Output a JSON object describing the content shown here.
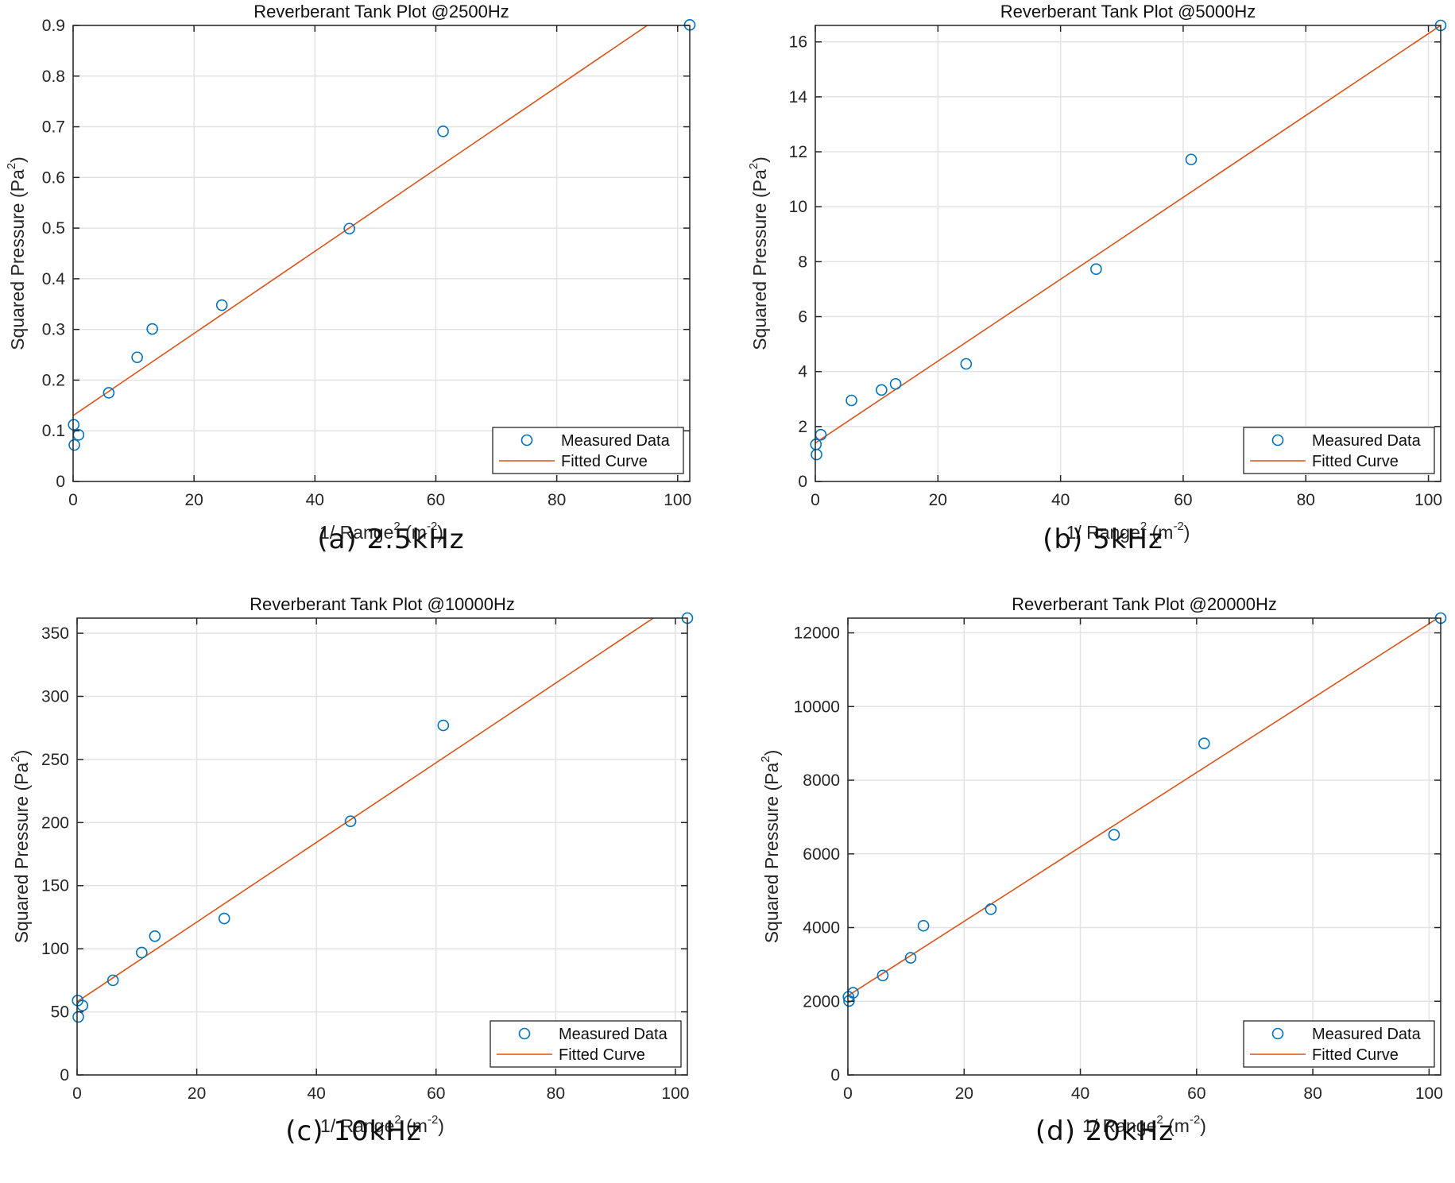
{
  "chart_data": [
    {
      "type": "scatter",
      "title": "Reverberant Tank Plot @2500Hz",
      "caption": "(a)  2.5kHz",
      "xlabel": "1/ Range",
      "xlabel_sup": "2",
      "xlabel_unit": " (m",
      "xlabel_unit_sup": "-2",
      "xlabel_end": ")",
      "ylabel": "Squared Pressure (Pa",
      "ylabel_sup": "2",
      "ylabel_end": ")",
      "xlim": [
        0,
        102
      ],
      "ylim": [
        0,
        0.9
      ],
      "xticks": [
        0,
        20,
        40,
        60,
        80,
        100
      ],
      "xtick_labels": [
        "0",
        "20",
        "40",
        "60",
        "80",
        "100"
      ],
      "yticks": [
        0,
        0.1,
        0.2,
        0.3,
        0.4,
        0.5,
        0.6,
        0.7,
        0.8,
        0.9
      ],
      "ytick_labels": [
        "0",
        "0.1",
        "0.2",
        "0.3",
        "0.4",
        "0.5",
        "0.6",
        "0.7",
        "0.8",
        "0.9"
      ],
      "grid": true,
      "legend_position": "bottom-right",
      "series": [
        {
          "name": "Measured Data",
          "kind": "markers",
          "color": "#0072BD",
          "x": [
            0.1,
            0.2,
            0.9,
            5.9,
            10.6,
            13.1,
            24.6,
            45.7,
            61.2,
            102
          ],
          "y": [
            0.112,
            0.072,
            0.092,
            0.175,
            0.245,
            0.301,
            0.348,
            0.499,
            0.691,
            0.901
          ]
        },
        {
          "name": "Fitted Curve",
          "kind": "line",
          "color": "#D95319",
          "x": [
            0,
            102
          ],
          "y": [
            0.13,
            0.957
          ]
        }
      ]
    },
    {
      "type": "scatter",
      "title": "Reverberant Tank Plot @5000Hz",
      "caption": "(b)  5kHz",
      "xlabel": "1/ Range",
      "xlabel_sup": "2",
      "xlabel_unit": " (m",
      "xlabel_unit_sup": "-2",
      "xlabel_end": ")",
      "ylabel": "Squared Pressure (Pa",
      "ylabel_sup": "2",
      "ylabel_end": ")",
      "xlim": [
        0,
        102
      ],
      "ylim": [
        0,
        16.6
      ],
      "xticks": [
        0,
        20,
        40,
        60,
        80,
        100
      ],
      "xtick_labels": [
        "0",
        "20",
        "40",
        "60",
        "80",
        "100"
      ],
      "yticks": [
        0,
        2,
        4,
        6,
        8,
        10,
        12,
        14,
        16
      ],
      "ytick_labels": [
        "0",
        "2",
        "4",
        "6",
        "8",
        "10",
        "12",
        "14",
        "16"
      ],
      "grid": true,
      "legend_position": "bottom-right",
      "series": [
        {
          "name": "Measured Data",
          "kind": "markers",
          "color": "#0072BD",
          "x": [
            0.1,
            0.2,
            0.9,
            5.9,
            10.8,
            13.1,
            24.6,
            45.8,
            61.3,
            102
          ],
          "y": [
            1.35,
            0.98,
            1.7,
            2.95,
            3.33,
            3.55,
            4.28,
            7.73,
            11.72,
            16.6
          ]
        },
        {
          "name": "Fitted Curve",
          "kind": "line",
          "color": "#D95319",
          "x": [
            0,
            102
          ],
          "y": [
            1.4,
            16.6
          ]
        }
      ]
    },
    {
      "type": "scatter",
      "title": "Reverberant Tank Plot @10000Hz",
      "caption": "(c)  10kHz",
      "xlabel": "1/ Range",
      "xlabel_sup": "2",
      "xlabel_unit": " (m",
      "xlabel_unit_sup": "-2",
      "xlabel_end": ")",
      "ylabel": "Squared Pressure (Pa",
      "ylabel_sup": "2",
      "ylabel_end": ")",
      "xlim": [
        0,
        102
      ],
      "ylim": [
        0,
        362
      ],
      "xticks": [
        0,
        20,
        40,
        60,
        80,
        100
      ],
      "xtick_labels": [
        "0",
        "20",
        "40",
        "60",
        "80",
        "100"
      ],
      "yticks": [
        0,
        50,
        100,
        150,
        200,
        250,
        300,
        350
      ],
      "ytick_labels": [
        "0",
        "50",
        "100",
        "150",
        "200",
        "250",
        "300",
        "350"
      ],
      "grid": true,
      "legend_position": "bottom-right",
      "series": [
        {
          "name": "Measured Data",
          "kind": "markers",
          "color": "#0072BD",
          "x": [
            0.1,
            0.2,
            0.9,
            6.0,
            10.8,
            13.0,
            24.6,
            45.7,
            61.2,
            102
          ],
          "y": [
            59,
            46,
            55,
            75,
            97,
            110,
            124,
            201,
            277,
            362
          ]
        },
        {
          "name": "Fitted Curve",
          "kind": "line",
          "color": "#D95319",
          "x": [
            0,
            102
          ],
          "y": [
            58,
            380
          ]
        }
      ]
    },
    {
      "type": "scatter",
      "title": "Reverberant Tank Plot @20000Hz",
      "caption": "(d)  20kHz",
      "xlabel": "1/ Range",
      "xlabel_sup": "2",
      "xlabel_unit": " (m",
      "xlabel_unit_sup": "-2",
      "xlabel_end": ")",
      "ylabel": "Squared Pressure (Pa",
      "ylabel_sup": "2",
      "ylabel_end": ")",
      "xlim": [
        0,
        102
      ],
      "ylim": [
        0,
        12400
      ],
      "xticks": [
        0,
        20,
        40,
        60,
        80,
        100
      ],
      "xtick_labels": [
        "0",
        "20",
        "40",
        "60",
        "80",
        "100"
      ],
      "yticks": [
        0,
        2000,
        4000,
        6000,
        8000,
        10000,
        12000
      ],
      "ytick_labels": [
        "0",
        "2000",
        "4000",
        "6000",
        "8000",
        "10000",
        "12000"
      ],
      "grid": true,
      "legend_position": "bottom-right",
      "series": [
        {
          "name": "Measured Data",
          "kind": "markers",
          "color": "#0072BD",
          "x": [
            0.1,
            0.2,
            0.9,
            6.0,
            10.8,
            13.0,
            24.6,
            45.8,
            61.3,
            102
          ],
          "y": [
            2120,
            2010,
            2230,
            2700,
            3180,
            4050,
            4500,
            6520,
            9000,
            12400
          ]
        },
        {
          "name": "Fitted Curve",
          "kind": "line",
          "color": "#D95319",
          "x": [
            0,
            102
          ],
          "y": [
            2150,
            12450
          ]
        }
      ]
    }
  ]
}
